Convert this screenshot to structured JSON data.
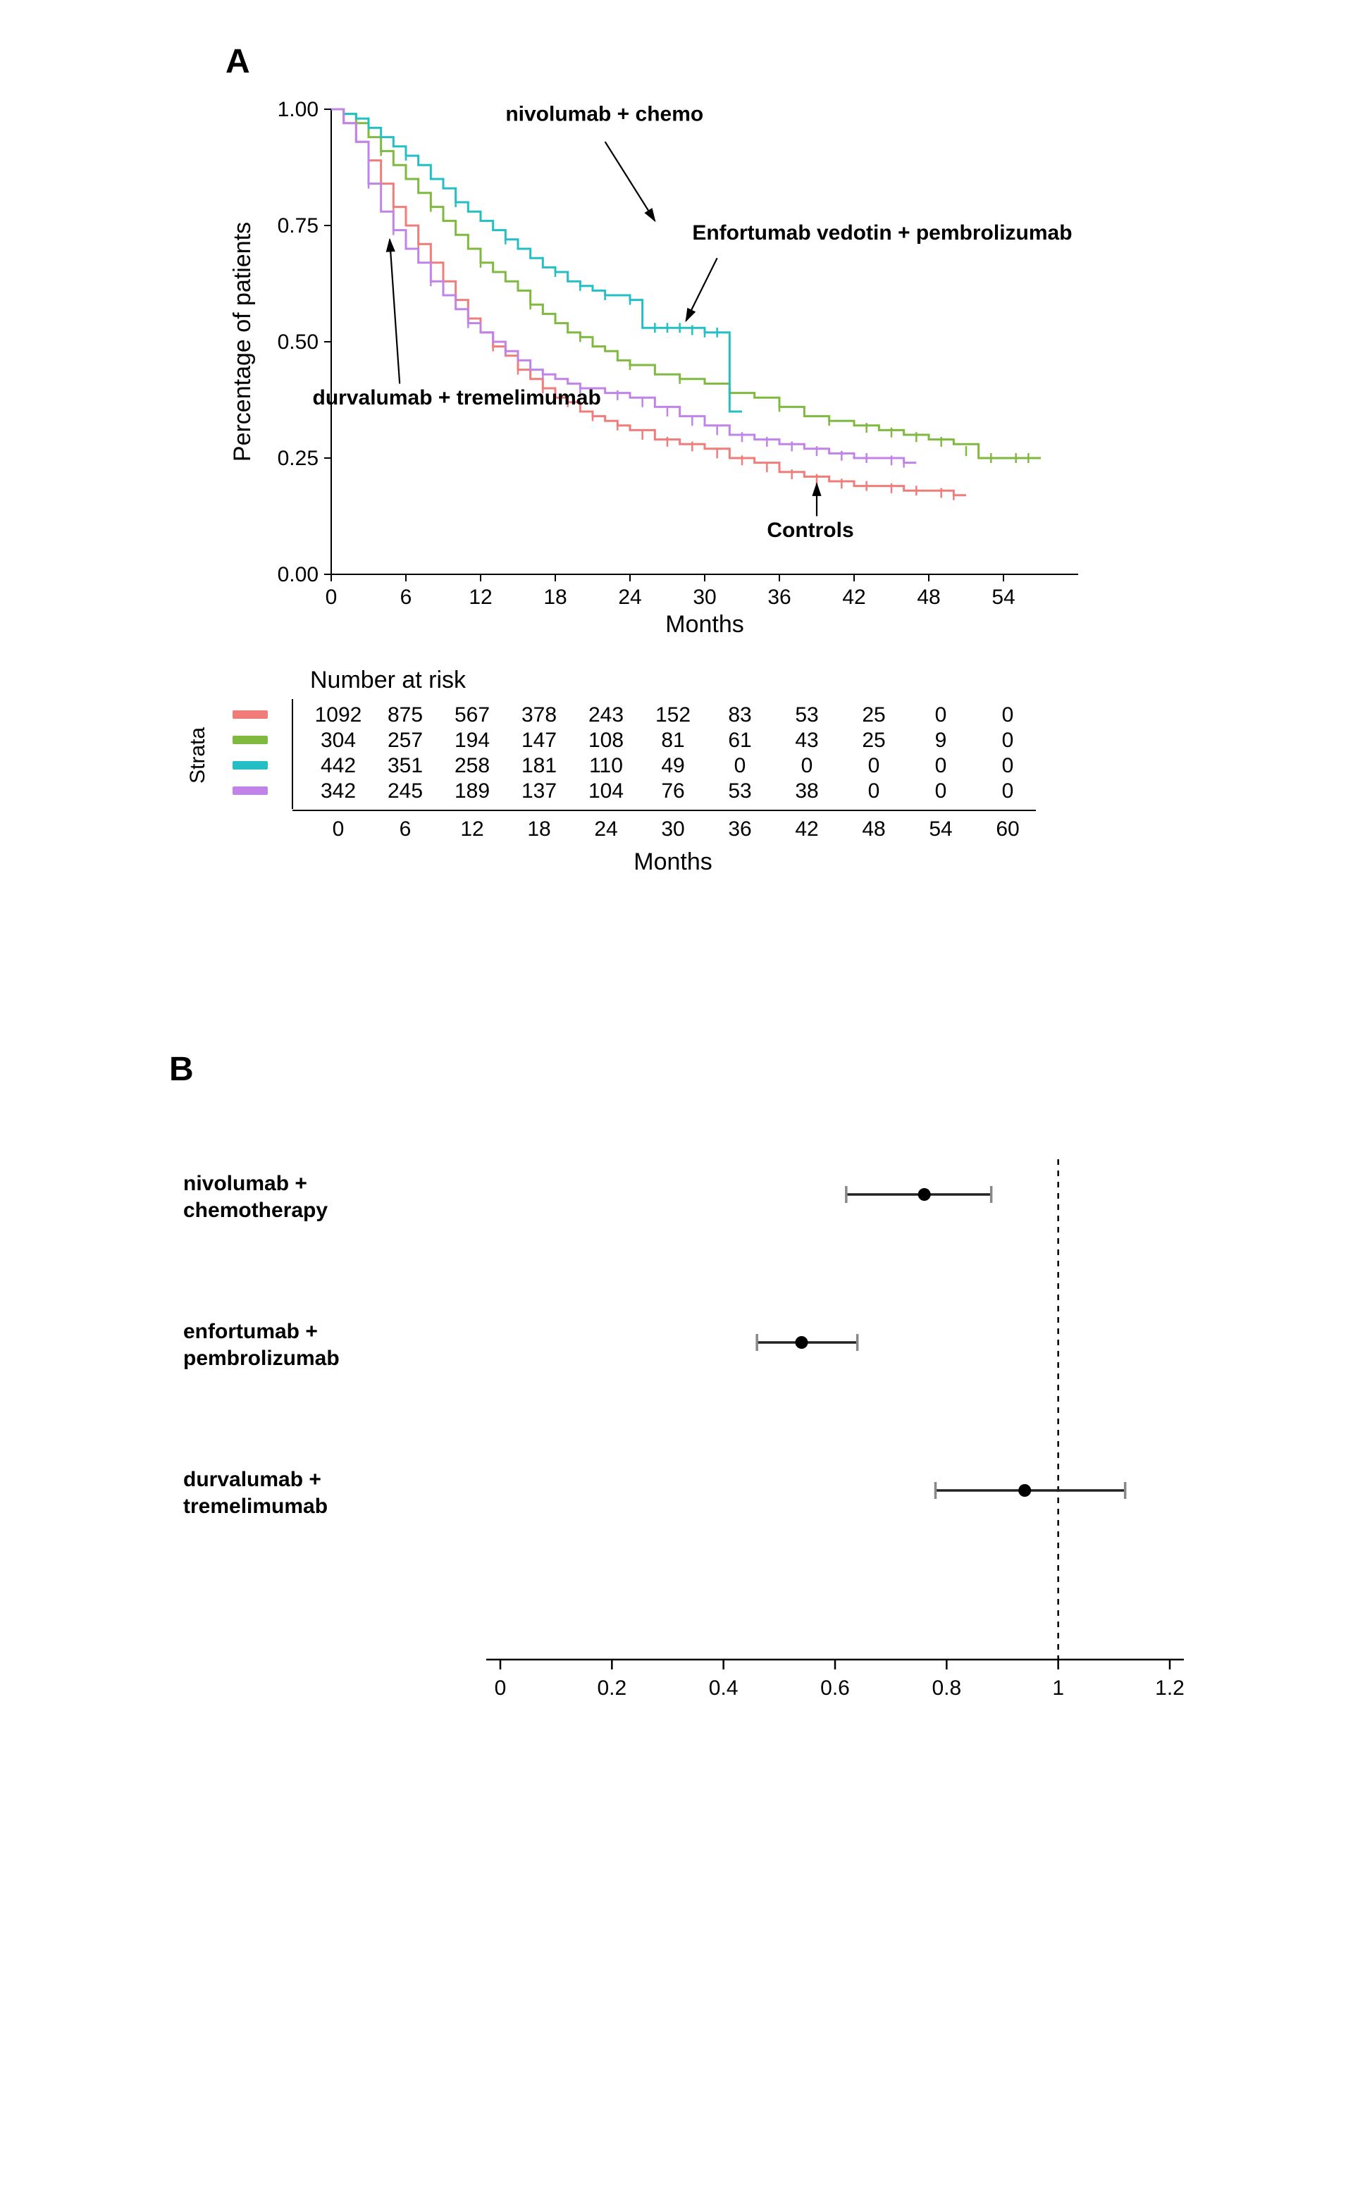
{
  "panelA": {
    "label": "A",
    "type": "kaplan-meier",
    "y_axis_title": "Percentage of patients",
    "x_axis_title": "Months",
    "xlim": [
      0,
      60
    ],
    "x_ticks": [
      0,
      6,
      12,
      18,
      24,
      30,
      36,
      42,
      48,
      54
    ],
    "ylim": [
      0,
      1.0
    ],
    "y_ticks": [
      0.0,
      0.25,
      0.5,
      0.75,
      1.0
    ],
    "background_color": "#ffffff",
    "curves": [
      {
        "name": "Controls",
        "color": "#f07d7a",
        "steps": [
          [
            0,
            1.0
          ],
          [
            1,
            0.97
          ],
          [
            2,
            0.93
          ],
          [
            3,
            0.89
          ],
          [
            4,
            0.84
          ],
          [
            5,
            0.79
          ],
          [
            6,
            0.75
          ],
          [
            7,
            0.71
          ],
          [
            8,
            0.67
          ],
          [
            9,
            0.63
          ],
          [
            10,
            0.59
          ],
          [
            11,
            0.55
          ],
          [
            12,
            0.52
          ],
          [
            13,
            0.49
          ],
          [
            14,
            0.47
          ],
          [
            15,
            0.44
          ],
          [
            16,
            0.42
          ],
          [
            17,
            0.4
          ],
          [
            18,
            0.38
          ],
          [
            19,
            0.37
          ],
          [
            20,
            0.35
          ],
          [
            21,
            0.34
          ],
          [
            22,
            0.33
          ],
          [
            23,
            0.32
          ],
          [
            24,
            0.31
          ],
          [
            26,
            0.29
          ],
          [
            28,
            0.28
          ],
          [
            30,
            0.27
          ],
          [
            32,
            0.25
          ],
          [
            34,
            0.24
          ],
          [
            36,
            0.22
          ],
          [
            38,
            0.21
          ],
          [
            40,
            0.2
          ],
          [
            42,
            0.19
          ],
          [
            44,
            0.19
          ],
          [
            46,
            0.18
          ],
          [
            48,
            0.18
          ],
          [
            50,
            0.17
          ],
          [
            51,
            0.17
          ]
        ],
        "censors": [
          [
            3,
            0.89
          ],
          [
            5,
            0.79
          ],
          [
            7,
            0.71
          ],
          [
            9,
            0.63
          ],
          [
            11,
            0.55
          ],
          [
            13,
            0.49
          ],
          [
            15,
            0.44
          ],
          [
            17,
            0.4
          ],
          [
            19,
            0.37
          ],
          [
            21,
            0.34
          ],
          [
            23,
            0.32
          ],
          [
            25,
            0.3
          ],
          [
            27,
            0.285
          ],
          [
            29,
            0.275
          ],
          [
            31,
            0.26
          ],
          [
            33,
            0.245
          ],
          [
            35,
            0.23
          ],
          [
            37,
            0.215
          ],
          [
            39,
            0.205
          ],
          [
            41,
            0.195
          ],
          [
            43,
            0.19
          ],
          [
            45,
            0.185
          ],
          [
            47,
            0.18
          ],
          [
            49,
            0.175
          ],
          [
            50,
            0.17
          ]
        ]
      },
      {
        "name": "nivolumab + chemo",
        "color": "#7fb940",
        "steps": [
          [
            0,
            1.0
          ],
          [
            1,
            0.99
          ],
          [
            2,
            0.97
          ],
          [
            3,
            0.94
          ],
          [
            4,
            0.91
          ],
          [
            5,
            0.88
          ],
          [
            6,
            0.85
          ],
          [
            7,
            0.82
          ],
          [
            8,
            0.79
          ],
          [
            9,
            0.76
          ],
          [
            10,
            0.73
          ],
          [
            11,
            0.7
          ],
          [
            12,
            0.67
          ],
          [
            13,
            0.65
          ],
          [
            14,
            0.63
          ],
          [
            15,
            0.61
          ],
          [
            16,
            0.58
          ],
          [
            17,
            0.56
          ],
          [
            18,
            0.54
          ],
          [
            19,
            0.52
          ],
          [
            20,
            0.51
          ],
          [
            21,
            0.49
          ],
          [
            22,
            0.48
          ],
          [
            23,
            0.46
          ],
          [
            24,
            0.45
          ],
          [
            26,
            0.43
          ],
          [
            28,
            0.42
          ],
          [
            30,
            0.41
          ],
          [
            32,
            0.39
          ],
          [
            34,
            0.38
          ],
          [
            36,
            0.36
          ],
          [
            38,
            0.34
          ],
          [
            40,
            0.33
          ],
          [
            42,
            0.32
          ],
          [
            44,
            0.31
          ],
          [
            46,
            0.3
          ],
          [
            48,
            0.29
          ],
          [
            50,
            0.28
          ],
          [
            52,
            0.25
          ],
          [
            56,
            0.25
          ],
          [
            57,
            0.25
          ]
        ],
        "censors": [
          [
            4,
            0.91
          ],
          [
            8,
            0.79
          ],
          [
            12,
            0.67
          ],
          [
            16,
            0.58
          ],
          [
            20,
            0.51
          ],
          [
            24,
            0.45
          ],
          [
            28,
            0.42
          ],
          [
            32,
            0.39
          ],
          [
            36,
            0.36
          ],
          [
            40,
            0.33
          ],
          [
            43,
            0.315
          ],
          [
            45,
            0.305
          ],
          [
            47,
            0.295
          ],
          [
            49,
            0.285
          ],
          [
            51,
            0.265
          ],
          [
            53,
            0.25
          ],
          [
            55,
            0.25
          ],
          [
            56,
            0.25
          ]
        ]
      },
      {
        "name": "Enfortumab vedotin + pembrolizumab",
        "color": "#24bfc4",
        "steps": [
          [
            0,
            1.0
          ],
          [
            1,
            0.99
          ],
          [
            2,
            0.98
          ],
          [
            3,
            0.96
          ],
          [
            4,
            0.94
          ],
          [
            5,
            0.92
          ],
          [
            6,
            0.9
          ],
          [
            7,
            0.88
          ],
          [
            8,
            0.85
          ],
          [
            9,
            0.83
          ],
          [
            10,
            0.8
          ],
          [
            11,
            0.78
          ],
          [
            12,
            0.76
          ],
          [
            13,
            0.74
          ],
          [
            14,
            0.72
          ],
          [
            15,
            0.7
          ],
          [
            16,
            0.68
          ],
          [
            17,
            0.66
          ],
          [
            18,
            0.65
          ],
          [
            19,
            0.63
          ],
          [
            20,
            0.62
          ],
          [
            21,
            0.61
          ],
          [
            22,
            0.6
          ],
          [
            23,
            0.6
          ],
          [
            24,
            0.59
          ],
          [
            25,
            0.53
          ],
          [
            26,
            0.53
          ],
          [
            28,
            0.53
          ],
          [
            30,
            0.52
          ],
          [
            31,
            0.52
          ],
          [
            32,
            0.35
          ],
          [
            33,
            0.35
          ]
        ],
        "censors": [
          [
            6,
            0.9
          ],
          [
            10,
            0.8
          ],
          [
            14,
            0.72
          ],
          [
            18,
            0.65
          ],
          [
            20,
            0.62
          ],
          [
            22,
            0.6
          ],
          [
            24,
            0.59
          ],
          [
            26,
            0.53
          ],
          [
            27,
            0.53
          ],
          [
            28,
            0.53
          ],
          [
            29,
            0.525
          ],
          [
            30,
            0.52
          ],
          [
            31,
            0.52
          ]
        ]
      },
      {
        "name": "durvalumab + tremelimumab",
        "color": "#c084e8",
        "steps": [
          [
            0,
            1.0
          ],
          [
            1,
            0.97
          ],
          [
            2,
            0.93
          ],
          [
            3,
            0.84
          ],
          [
            4,
            0.78
          ],
          [
            5,
            0.74
          ],
          [
            6,
            0.7
          ],
          [
            7,
            0.67
          ],
          [
            8,
            0.63
          ],
          [
            9,
            0.6
          ],
          [
            10,
            0.57
          ],
          [
            11,
            0.54
          ],
          [
            12,
            0.52
          ],
          [
            13,
            0.5
          ],
          [
            14,
            0.48
          ],
          [
            15,
            0.46
          ],
          [
            16,
            0.44
          ],
          [
            17,
            0.43
          ],
          [
            18,
            0.42
          ],
          [
            19,
            0.41
          ],
          [
            20,
            0.4
          ],
          [
            22,
            0.39
          ],
          [
            24,
            0.38
          ],
          [
            26,
            0.36
          ],
          [
            28,
            0.34
          ],
          [
            30,
            0.32
          ],
          [
            32,
            0.3
          ],
          [
            34,
            0.29
          ],
          [
            36,
            0.28
          ],
          [
            38,
            0.27
          ],
          [
            40,
            0.26
          ],
          [
            42,
            0.25
          ],
          [
            44,
            0.25
          ],
          [
            46,
            0.24
          ],
          [
            47,
            0.24
          ]
        ],
        "censors": [
          [
            3,
            0.84
          ],
          [
            5,
            0.74
          ],
          [
            8,
            0.63
          ],
          [
            11,
            0.54
          ],
          [
            14,
            0.48
          ],
          [
            17,
            0.43
          ],
          [
            20,
            0.4
          ],
          [
            23,
            0.385
          ],
          [
            25,
            0.37
          ],
          [
            27,
            0.35
          ],
          [
            29,
            0.33
          ],
          [
            31,
            0.31
          ],
          [
            33,
            0.295
          ],
          [
            35,
            0.285
          ],
          [
            37,
            0.275
          ],
          [
            39,
            0.265
          ],
          [
            41,
            0.255
          ],
          [
            43,
            0.25
          ],
          [
            45,
            0.245
          ],
          [
            46,
            0.24
          ]
        ]
      }
    ],
    "annotations": {
      "nivo": "nivolumab + chemo",
      "enfo": "Enfortumab vedotin + pembrolizumab",
      "durva": "durvalumab + tremelimumab",
      "controls": "Controls"
    }
  },
  "risk_table": {
    "title": "Number at risk",
    "x_axis_title": "Months",
    "strata_label": "Strata",
    "months": [
      0,
      6,
      12,
      18,
      24,
      30,
      36,
      42,
      48,
      54,
      60
    ],
    "rows": [
      {
        "color": "#f07d7a",
        "values": [
          1092,
          875,
          567,
          378,
          243,
          152,
          83,
          53,
          25,
          0,
          0
        ]
      },
      {
        "color": "#7fb940",
        "values": [
          304,
          257,
          194,
          147,
          108,
          81,
          61,
          43,
          25,
          9,
          0
        ]
      },
      {
        "color": "#24bfc4",
        "values": [
          442,
          351,
          258,
          181,
          110,
          49,
          0,
          0,
          0,
          0,
          0
        ]
      },
      {
        "color": "#c084e8",
        "values": [
          342,
          245,
          189,
          137,
          104,
          76,
          53,
          38,
          0,
          0,
          0
        ]
      }
    ]
  },
  "panelB": {
    "label": "B",
    "type": "forest",
    "xlim": [
      0,
      1.2
    ],
    "x_ticks": [
      0,
      0.2,
      0.4,
      0.6,
      0.8,
      1,
      1.2
    ],
    "ref_x": 1.0,
    "rows": [
      {
        "label1": "nivolumab +",
        "label2": "chemotherapy",
        "est": 0.76,
        "low": 0.62,
        "high": 0.88
      },
      {
        "label1": "enfortumab +",
        "label2": "pembrolizumab",
        "est": 0.54,
        "low": 0.46,
        "high": 0.64
      },
      {
        "label1": "durvalumab +",
        "label2": "tremelimumab",
        "est": 0.94,
        "low": 0.78,
        "high": 1.12
      }
    ]
  }
}
